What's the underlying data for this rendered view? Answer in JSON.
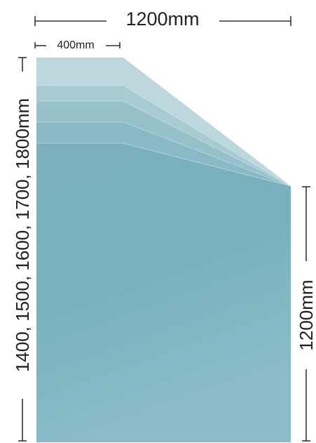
{
  "dimensions": {
    "top_width": "1200mm",
    "flat_width": "400mm",
    "left_heights": "1400, 1500, 1600, 1700, 1800mm",
    "right_height": "1200mm"
  },
  "colors": {
    "panel_main": "#7fb3be",
    "panel_top": "#b9d6da",
    "band_light": "#a7cbd3",
    "band_mid": "#93bfc9",
    "band_dark": "#86b8c3",
    "dimension_line": "#333333",
    "text": "#222222"
  },
  "panel_heights_mm": [
    1400,
    1500,
    1600,
    1700,
    1800
  ],
  "low_side_height_mm": 1200
}
